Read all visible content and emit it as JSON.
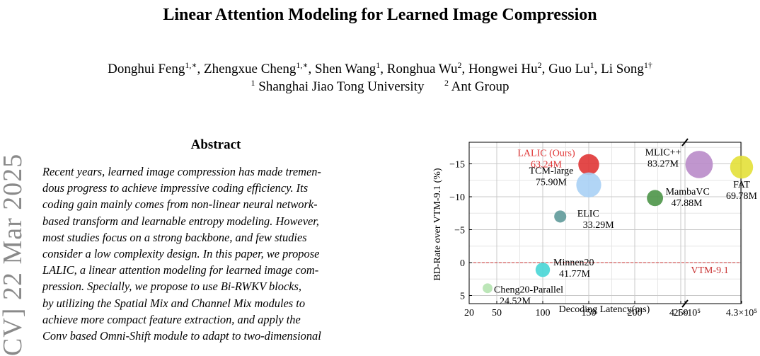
{
  "paper": {
    "title": "Linear Attention Modeling for Learned Image Compression",
    "authors": [
      {
        "name": "Donghui Feng",
        "mark": "1,∗"
      },
      {
        "name": "Zhengxue Cheng",
        "mark": "1,∗"
      },
      {
        "name": "Shen Wang",
        "mark": "1"
      },
      {
        "name": "Ronghua Wu",
        "mark": "2"
      },
      {
        "name": "Hongwei Hu",
        "mark": "2"
      },
      {
        "name": "Guo Lu",
        "mark": "1"
      },
      {
        "name": "Li Song",
        "mark": "1†"
      }
    ],
    "affiliations": [
      {
        "num": "1",
        "name": "Shanghai Jiao Tong University"
      },
      {
        "num": "2",
        "name": "Ant Group"
      }
    ],
    "arxiv_stamp": "CV]  22 Mar 2025",
    "abstract_heading": "Abstract",
    "abstract_lines": [
      "Recent years, learned image compression has made tremen-",
      "dous progress to achieve impressive coding efficiency. Its",
      "coding gain mainly comes from non-linear neural network-",
      "based transform and learnable entropy modeling. However,",
      "most studies focus on a strong backbone, and few studies",
      "consider a low complexity design. In this paper, we propose",
      "LALIC, a linear attention modeling for learned image com-",
      "pression. Specially, we propose to use Bi-RWKV blocks,",
      "by utilizing the Spatial Mix and Channel Mix modules to",
      "achieve more compact feature extraction, and apply the",
      "Conv based Omni-Shift module to adapt to two-dimensional"
    ]
  },
  "chart_data": {
    "type": "scatter",
    "xlabel": "Decoding Latency(ms)",
    "ylabel": "BD-Rate over VTM-9.1 (%)",
    "ylim": [
      -18,
      7
    ],
    "y_inverted": true,
    "broken_x_axis": true,
    "x_ticks": [
      "20",
      "50",
      "100",
      "150",
      "200",
      "250",
      "4.1×10⁵",
      "4.3×10⁵"
    ],
    "y_ticks": [
      "−15",
      "−10",
      "−5",
      "0",
      "5"
    ],
    "grid": true,
    "reference_line": {
      "label": "VTM-9.1",
      "y": 0,
      "color": "#c83232"
    },
    "points": [
      {
        "label": "LALIC (Ours)",
        "params": "63.24M",
        "x": 150,
        "y": -14.9,
        "size": 63.24,
        "color": "#e03535",
        "highlight": true
      },
      {
        "label": "TCM-large",
        "params": "75.90M",
        "x": 150,
        "y": -11.8,
        "size": 75.9,
        "color": "#a8d0f5"
      },
      {
        "label": "MLIC++",
        "params": "83.27M",
        "x": 270,
        "y": -14.9,
        "size": 83.27,
        "color": "#b98bc9"
      },
      {
        "label": "FAT",
        "params": "69.78M",
        "x": 430000,
        "y": -14.5,
        "size": 69.78,
        "color": "#e3e038"
      },
      {
        "label": "MambaVC",
        "params": "47.88M",
        "x": 222,
        "y": -9.8,
        "size": 47.88,
        "color": "#4c9548"
      },
      {
        "label": "ELIC",
        "params": "33.29M",
        "x": 119,
        "y": -7,
        "size": 33.29,
        "color": "#5f9a9a"
      },
      {
        "label": "Minnen20",
        "params": "41.77M",
        "x": 100,
        "y": 1.1,
        "size": 41.77,
        "color": "#48d6d6"
      },
      {
        "label": "Cheng20-Parallel",
        "params": "24.52M",
        "x": 40,
        "y": 3.9,
        "size": 24.52,
        "color": "#b5e3b0"
      }
    ]
  }
}
